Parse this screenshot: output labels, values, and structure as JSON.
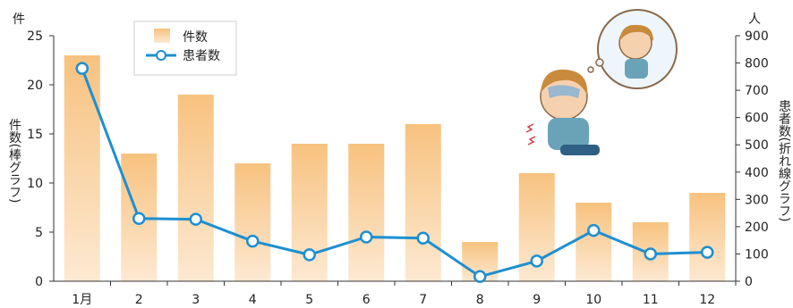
{
  "chart_data": {
    "type": "bar+line",
    "categories": [
      "1月",
      "2",
      "3",
      "4",
      "5",
      "6",
      "7",
      "8",
      "9",
      "10",
      "11",
      "12"
    ],
    "series": [
      {
        "name": "件数",
        "type": "bar",
        "axis": "left",
        "values": [
          23,
          13,
          19,
          12,
          14,
          14,
          16,
          4,
          11,
          8,
          6,
          9
        ]
      },
      {
        "name": "患者数",
        "type": "line",
        "axis": "right",
        "values": [
          780,
          230,
          227,
          147,
          97,
          162,
          158,
          17,
          74,
          186,
          100,
          106
        ]
      }
    ],
    "left_axis": {
      "unit": "件",
      "label": "件数(棒グラフ)",
      "ylim": [
        0,
        25
      ],
      "ticks": [
        0,
        5,
        10,
        15,
        20,
        25
      ]
    },
    "right_axis": {
      "unit": "人",
      "label": "患者数(折れ線グラフ)",
      "ylim": [
        0,
        900
      ],
      "ticks": [
        0,
        100,
        200,
        300,
        400,
        500,
        600,
        700,
        800,
        900
      ]
    },
    "grid": false,
    "legend": "top-left",
    "colors": {
      "bar_top": "#f7c27f",
      "bar_bottom": "#fde9d2",
      "line": "#1d8fd1",
      "marker_fill": "#ffffff",
      "axis": "#333333"
    }
  }
}
